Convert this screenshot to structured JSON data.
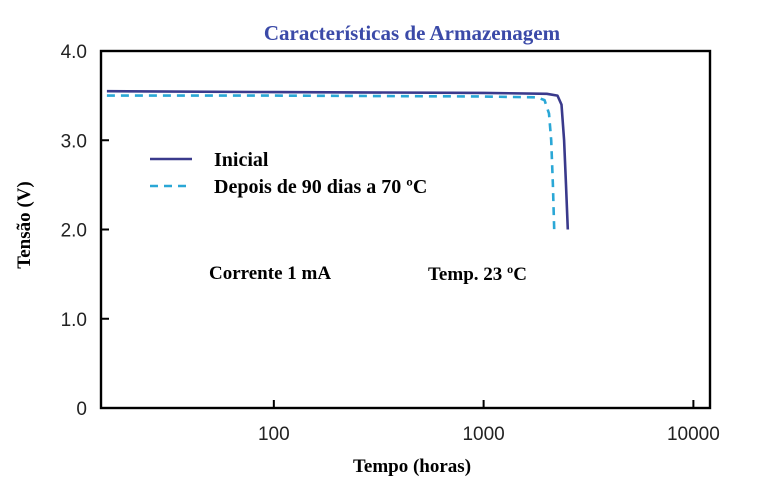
{
  "chart_data": {
    "type": "line",
    "title": "Características de Armazenagem",
    "xlabel": "Tempo (horas)",
    "ylabel": "Tensão (V)",
    "x_scale": "log",
    "xlim": [
      15,
      12000
    ],
    "ylim": [
      0,
      4.0
    ],
    "x_ticks": [
      {
        "value": 100,
        "label": "100"
      },
      {
        "value": 1000,
        "label": "1000"
      },
      {
        "value": 10000,
        "label": "10000"
      }
    ],
    "y_ticks": [
      {
        "value": 0,
        "label": "0"
      },
      {
        "value": 1.0,
        "label": "1.0"
      },
      {
        "value": 2.0,
        "label": "2.0"
      },
      {
        "value": 3.0,
        "label": "3.0"
      },
      {
        "value": 4.0,
        "label": "4.0"
      }
    ],
    "grid": false,
    "legend_position": "upper-left",
    "series": [
      {
        "name": "Inicial",
        "color": "#3a3a8c",
        "dash": "solid",
        "points": [
          [
            16,
            3.55
          ],
          [
            100,
            3.54
          ],
          [
            1000,
            3.53
          ],
          [
            2000,
            3.52
          ],
          [
            2250,
            3.5
          ],
          [
            2350,
            3.4
          ],
          [
            2420,
            3.0
          ],
          [
            2470,
            2.5
          ],
          [
            2520,
            2.0
          ]
        ]
      },
      {
        "name": "Depois de 90 dias a 70 ºC",
        "color": "#2aa7d6",
        "dash": "dashed",
        "points": [
          [
            16,
            3.5
          ],
          [
            100,
            3.5
          ],
          [
            1000,
            3.49
          ],
          [
            1800,
            3.48
          ],
          [
            1950,
            3.45
          ],
          [
            2050,
            3.3
          ],
          [
            2100,
            3.0
          ],
          [
            2140,
            2.5
          ],
          [
            2170,
            2.0
          ]
        ]
      }
    ],
    "annotations": [
      {
        "id": "current",
        "text": "Corrente 1 mA"
      },
      {
        "id": "temp",
        "text": "Temp. 23 ºC"
      }
    ]
  }
}
